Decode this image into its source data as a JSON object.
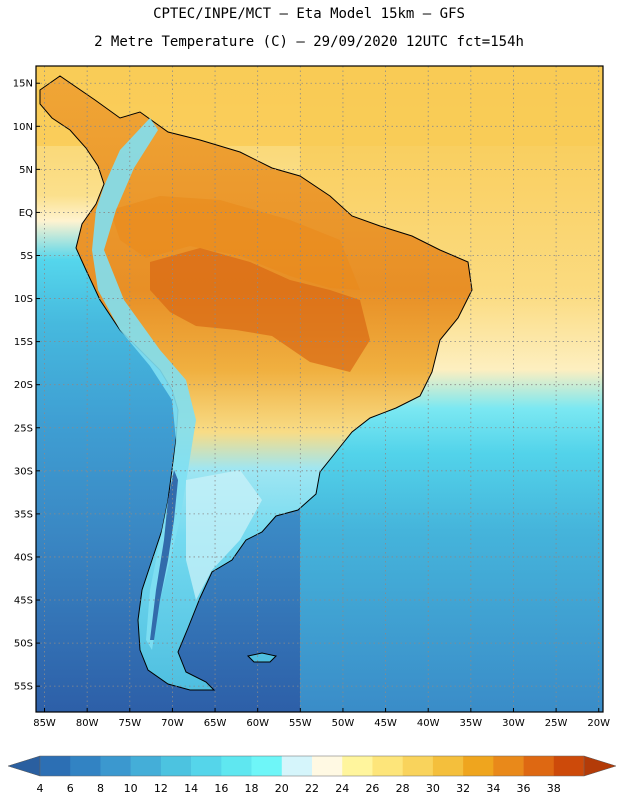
{
  "header": {
    "line1": "CPTEC/INPE/MCT –  Eta Model 15km – GFS",
    "line2": "2 Metre Temperature (C) – 29/09/2020 12UTC fct=154h"
  },
  "map": {
    "lon_min": -86,
    "lon_max": -19.5,
    "lat_min": -58,
    "lat_max": 17,
    "lat_ticks": [
      {
        "v": 15,
        "label": "15N"
      },
      {
        "v": 10,
        "label": "10N"
      },
      {
        "v": 5,
        "label": "5N"
      },
      {
        "v": 0,
        "label": "EQ"
      },
      {
        "v": -5,
        "label": "5S"
      },
      {
        "v": -10,
        "label": "10S"
      },
      {
        "v": -15,
        "label": "15S"
      },
      {
        "v": -20,
        "label": "20S"
      },
      {
        "v": -25,
        "label": "25S"
      },
      {
        "v": -30,
        "label": "30S"
      },
      {
        "v": -35,
        "label": "35S"
      },
      {
        "v": -40,
        "label": "40S"
      },
      {
        "v": -45,
        "label": "45S"
      },
      {
        "v": -50,
        "label": "50S"
      },
      {
        "v": -55,
        "label": "55S"
      }
    ],
    "lon_ticks": [
      {
        "v": -85,
        "label": "85W"
      },
      {
        "v": -80,
        "label": "80W"
      },
      {
        "v": -75,
        "label": "75W"
      },
      {
        "v": -70,
        "label": "70W"
      },
      {
        "v": -65,
        "label": "65W"
      },
      {
        "v": -60,
        "label": "60W"
      },
      {
        "v": -55,
        "label": "55W"
      },
      {
        "v": -50,
        "label": "50W"
      },
      {
        "v": -45,
        "label": "45W"
      },
      {
        "v": -40,
        "label": "40W"
      },
      {
        "v": -35,
        "label": "35W"
      },
      {
        "v": -30,
        "label": "30W"
      },
      {
        "v": -25,
        "label": "25W"
      },
      {
        "v": -20,
        "label": "20W"
      }
    ],
    "grid": "dotted"
  },
  "colorbar": {
    "labels": [
      "4",
      "6",
      "8",
      "10",
      "12",
      "14",
      "16",
      "18",
      "20",
      "22",
      "24",
      "26",
      "28",
      "30",
      "32",
      "34",
      "36",
      "38"
    ],
    "colors": [
      "#2c6fb4",
      "#3283c3",
      "#3b98cf",
      "#44aed8",
      "#4cc3e0",
      "#55d5ea",
      "#5fe7f0",
      "#6ef6f8",
      "#d5f5fb",
      "#fff9e3",
      "#fff59d",
      "#fde57a",
      "#f9d35c",
      "#f4bf3c",
      "#efa51e",
      "#e9891a",
      "#de6812",
      "#cd4a0a"
    ],
    "min_color": "#2a5fa0",
    "max_color": "#b33b08"
  },
  "colors": {
    "ocean_deep": "#2f66ae",
    "ocean_mid": "#3c94cc",
    "ocean_cyan": "#56d6ec",
    "ocean_warm": "#fde6a3",
    "land_hot": "#e08a24",
    "land_warm": "#f2b440",
    "land_cool": "#8cd8ee"
  }
}
